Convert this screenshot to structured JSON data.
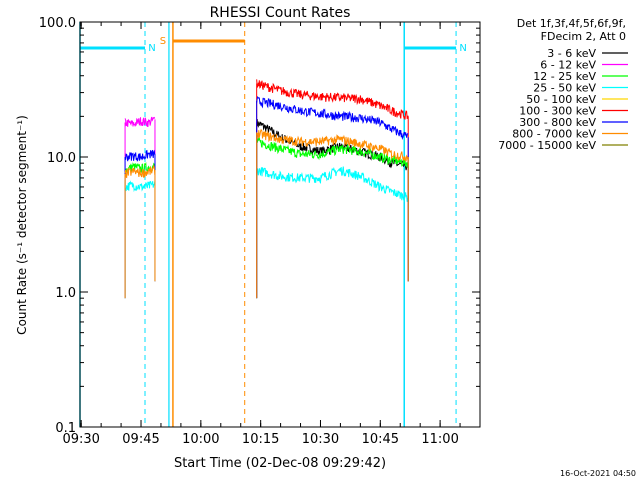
{
  "chart_data": {
    "type": "line",
    "title": "RHESSI Count Rates",
    "xlabel": "Start Time (02-Dec-08 09:29:42)",
    "ylabel": "Count Rate (s⁻¹ detector segment⁻¹)",
    "yscale": "log",
    "ylim": [
      0.1,
      100
    ],
    "xlim": [
      "09:29:42",
      "11:10:00"
    ],
    "x_ticks": [
      "09:30",
      "09:45",
      "10:00",
      "10:15",
      "10:30",
      "10:45",
      "11:00"
    ],
    "y_ticks": [
      "0.1",
      "1.0",
      "10.0",
      "100.0"
    ],
    "legend_header": [
      "Det 1f,3f,4f,5f,6f,9f,",
      "FDecim 2, Att 0"
    ],
    "legend_position": "top-right, outside plot",
    "series": [
      {
        "name": "3 - 6 keV",
        "color": "#000000",
        "segments": [
          {
            "x": [
              "10:14:00",
              "10:20:00",
              "10:25:00",
              "10:30:00",
              "10:35:00",
              "10:40:00",
              "10:45:00",
              "10:48:00",
              "10:52:00"
            ],
            "y": [
              18,
              14,
              12,
              11,
              12,
              11,
              10,
              9,
              8.5
            ]
          }
        ]
      },
      {
        "name": "6 - 12 keV",
        "color": "#ff00ff",
        "segments": [
          {
            "x": [
              "09:41:00",
              "09:43:00",
              "09:45:00",
              "09:47:00",
              "09:48:30"
            ],
            "y": [
              18,
              17.5,
              18.5,
              18,
              19
            ]
          }
        ]
      },
      {
        "name": "12 - 25 keV",
        "color": "#00ff00",
        "segments": [
          {
            "x": [
              "09:41:00",
              "09:43:00",
              "09:45:00",
              "09:47:00",
              "09:48:30"
            ],
            "y": [
              8,
              8.5,
              8.2,
              8.4,
              8.5
            ]
          },
          {
            "x": [
              "10:14:00",
              "10:20:00",
              "10:25:00",
              "10:30:00",
              "10:35:00",
              "10:40:00",
              "10:45:00",
              "10:48:00",
              "10:52:00"
            ],
            "y": [
              13,
              11.5,
              10.5,
              10.5,
              11.5,
              11,
              10,
              9.5,
              9
            ]
          }
        ]
      },
      {
        "name": "25 - 50 keV",
        "color": "#00ffff",
        "segments": [
          {
            "x": [
              "09:41:00",
              "09:43:00",
              "09:45:00",
              "09:47:00",
              "09:48:30"
            ],
            "y": [
              6,
              6.2,
              6,
              6.1,
              6.3
            ]
          },
          {
            "x": [
              "10:14:00",
              "10:20:00",
              "10:25:00",
              "10:30:00",
              "10:35:00",
              "10:40:00",
              "10:45:00",
              "10:48:00",
              "10:52:00"
            ],
            "y": [
              8,
              7.2,
              7,
              7,
              8,
              7.2,
              6,
              5.5,
              5
            ]
          }
        ]
      },
      {
        "name": "50 - 100 keV",
        "color": "#ffd700",
        "segments": []
      },
      {
        "name": "100 - 300 keV",
        "color": "#ff0000",
        "segments": [
          {
            "x": [
              "10:14:00",
              "10:20:00",
              "10:25:00",
              "10:30:00",
              "10:35:00",
              "10:40:00",
              "10:45:00",
              "10:48:00",
              "10:52:00"
            ],
            "y": [
              35,
              31,
              29,
              28,
              27.5,
              27,
              24,
              22,
              20
            ]
          }
        ]
      },
      {
        "name": "300 - 800 keV",
        "color": "#0000ff",
        "segments": [
          {
            "x": [
              "09:41:00",
              "09:43:00",
              "09:45:00",
              "09:47:00",
              "09:48:30"
            ],
            "y": [
              10,
              10.2,
              10,
              10.5,
              10.5
            ]
          },
          {
            "x": [
              "10:14:00",
              "10:20:00",
              "10:25:00",
              "10:30:00",
              "10:35:00",
              "10:40:00",
              "10:45:00",
              "10:48:00",
              "10:52:00"
            ],
            "y": [
              26,
              24,
              22,
              21,
              20,
              19.5,
              18,
              16,
              14
            ]
          }
        ]
      },
      {
        "name": "800 - 7000 keV",
        "color": "#ff8c00",
        "segments": [
          {
            "x": [
              "09:41:00",
              "09:43:00",
              "09:45:00",
              "09:47:00",
              "09:48:30"
            ],
            "y": [
              7.5,
              7.8,
              7.6,
              7.8,
              8
            ]
          },
          {
            "x": [
              "10:14:00",
              "10:20:00",
              "10:25:00",
              "10:30:00",
              "10:35:00",
              "10:40:00",
              "10:45:00",
              "10:48:00",
              "10:52:00"
            ],
            "y": [
              15,
              13.5,
              13,
              13,
              13.5,
              12.5,
              11.5,
              10.5,
              10
            ]
          }
        ]
      },
      {
        "name": "7000 - 15000 keV",
        "color": "#808000",
        "segments": []
      }
    ],
    "annotations": [
      {
        "label": "N",
        "color": "#00e0ff",
        "start": "09:29:42",
        "end": "09:46:00",
        "solid_boundary": "09:29:42",
        "dashed_boundary": "09:46:00"
      },
      {
        "label": "N",
        "color": "#00e0ff",
        "start": "10:51:00",
        "end": "11:04:00",
        "solid_boundary": "10:51:00",
        "dashed_boundary": "11:04:00"
      },
      {
        "label": "S",
        "color": "#ff8c00",
        "start": "09:53:00",
        "end": "10:11:00",
        "solid_boundary": "09:53:00",
        "dashed_boundary": "10:11:00"
      }
    ],
    "extra_markers": [
      {
        "color": "#00e0ff",
        "x": "09:52:00",
        "style": "solid"
      }
    ]
  },
  "footer": {
    "timestamp": "16-Oct-2021 04:50"
  },
  "colors": {
    "cyan": "#00e0ff",
    "orange": "#ff8c00"
  }
}
